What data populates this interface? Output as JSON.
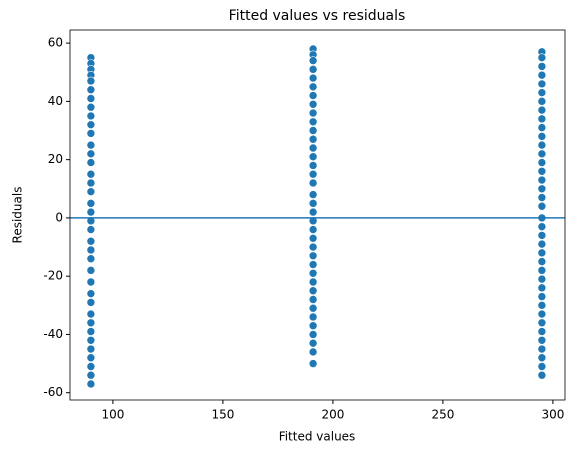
{
  "chart_data": {
    "type": "scatter",
    "title": "Fitted values vs residuals",
    "x_label": "Fitted values",
    "y_label": "Residuals",
    "color": "#1f77b4",
    "hline": 0,
    "hline_color": "#1f77b4",
    "xlim": [
      80.5,
      305.5
    ],
    "xticks": [
      100,
      150,
      200,
      250,
      300
    ],
    "ylim": [
      -62.5,
      64.5
    ],
    "yticks": [
      -60,
      -40,
      -20,
      0,
      20,
      40,
      60
    ],
    "x": [
      90,
      90,
      90,
      90,
      90,
      90,
      90,
      90,
      90,
      90,
      90,
      90,
      90,
      90,
      90,
      90,
      90,
      90,
      90,
      90,
      90,
      90,
      90,
      90,
      90,
      90,
      90,
      90,
      90,
      90,
      90,
      90,
      90,
      90,
      90,
      90,
      90,
      191,
      191,
      191,
      191,
      191,
      191,
      191,
      191,
      191,
      191,
      191,
      191,
      191,
      191,
      191,
      191,
      191,
      191,
      191,
      191,
      191,
      191,
      191,
      191,
      191,
      191,
      191,
      191,
      191,
      191,
      191,
      191,
      191,
      191,
      191,
      191,
      191,
      295,
      295,
      295,
      295,
      295,
      295,
      295,
      295,
      295,
      295,
      295,
      295,
      295,
      295,
      295,
      295,
      295,
      295,
      295,
      295,
      295,
      295,
      295,
      295,
      295,
      295,
      295,
      295,
      295,
      295,
      295,
      295,
      295,
      295,
      295,
      295,
      295,
      295
    ],
    "values": [
      55,
      53,
      51,
      49,
      47,
      44,
      41,
      38,
      35,
      32,
      29,
      25,
      22,
      19,
      15,
      12,
      9,
      5,
      2,
      -1,
      -4,
      -8,
      -11,
      -14,
      -18,
      -22,
      -26,
      -29,
      -33,
      -36,
      -39,
      -42,
      -45,
      -48,
      -51,
      -54,
      -57,
      58,
      56,
      54,
      51,
      48,
      45,
      42,
      39,
      36,
      33,
      30,
      27,
      24,
      21,
      18,
      15,
      12,
      8,
      5,
      2,
      -1,
      -4,
      -7,
      -10,
      -13,
      -16,
      -19,
      -22,
      -25,
      -28,
      -31,
      -34,
      -37,
      -40,
      -43,
      -46,
      -50,
      57,
      55,
      52,
      49,
      46,
      43,
      40,
      37,
      34,
      31,
      28,
      25,
      22,
      19,
      16,
      13,
      10,
      7,
      4,
      0,
      -3,
      -6,
      -9,
      -12,
      -15,
      -18,
      -21,
      -24,
      -27,
      -30,
      -33,
      -36,
      -39,
      -42,
      -45,
      -48,
      -51,
      -54
    ]
  }
}
